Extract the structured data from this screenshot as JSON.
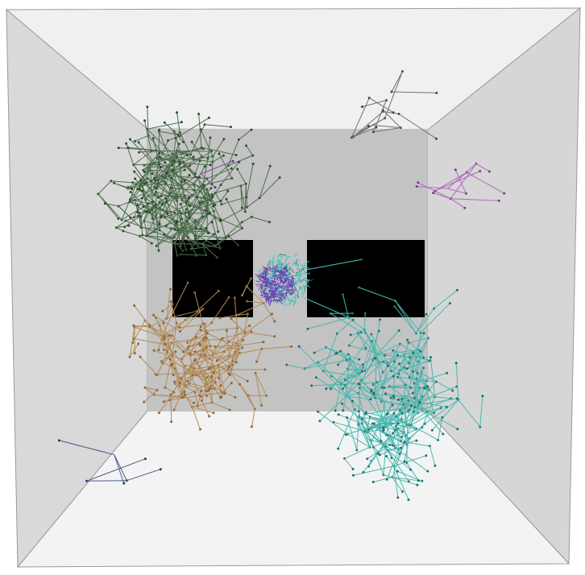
{
  "scene": {
    "colors": {
      "background": "#ffffff",
      "outer_frame": "#9a9a9a",
      "left_wall": "#d9d9d9",
      "right_wall": "#d6d6d6",
      "ceiling": "#f0f0f0",
      "floor": "#f3f3f3",
      "back_wall": "#c3c3c3",
      "obstacle": "#000000",
      "edge": "#8a8a8a"
    },
    "path_sets": [
      {
        "name": "dark-green-tree",
        "color": "#4b6e4b",
        "node_color": "#2e4a2e"
      },
      {
        "name": "tan-tree",
        "color": "#b58a55",
        "node_color": "#8a6535"
      },
      {
        "name": "teal-tree",
        "color": "#49b8b0",
        "node_color": "#1f6f6a"
      },
      {
        "name": "violet-tree",
        "color": "#7e4fa5",
        "node_color": "#5a3080"
      },
      {
        "name": "navy-tree",
        "color": "#4a5a8a",
        "node_color": "#2a355e"
      },
      {
        "name": "gray-tree",
        "color": "#707070",
        "node_color": "#404040"
      },
      {
        "name": "magenta-tree",
        "color": "#b06ac0",
        "node_color": "#7a3a88"
      }
    ],
    "goal_sphere": {
      "colors": [
        "#3fc6c0",
        "#6a3fb0",
        "#2a7a8a"
      ]
    }
  }
}
